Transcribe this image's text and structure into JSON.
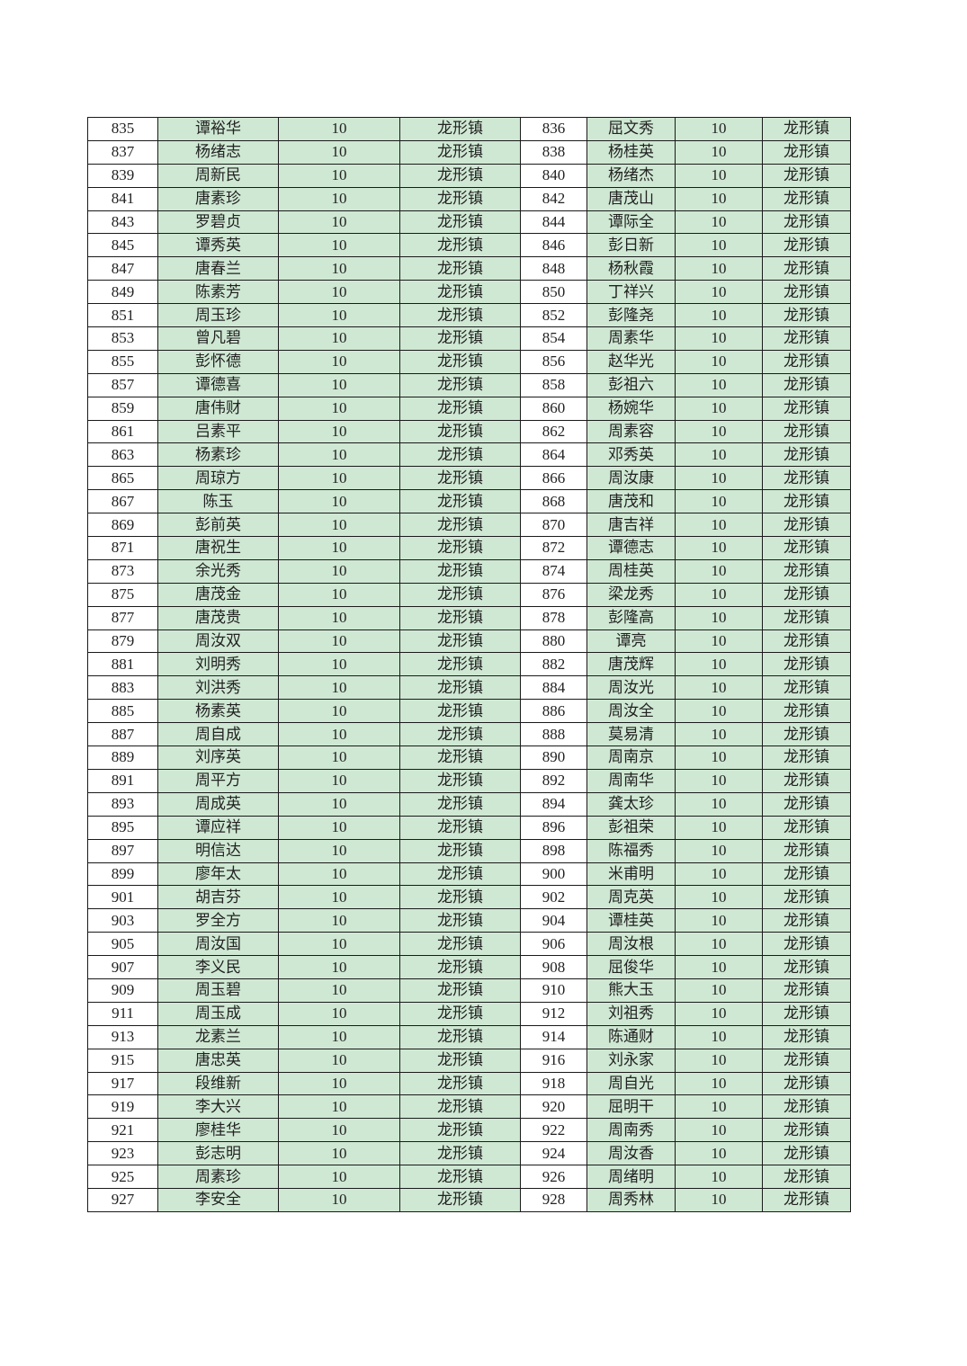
{
  "colors": {
    "fill": "#cfe8d3",
    "border": "#1a1a1a"
  },
  "rows": [
    [
      [
        "835",
        "谭裕华",
        "10",
        "龙形镇"
      ],
      [
        "836",
        "屈文秀",
        "10",
        "龙形镇"
      ]
    ],
    [
      [
        "837",
        "杨绪志",
        "10",
        "龙形镇"
      ],
      [
        "838",
        "杨桂英",
        "10",
        "龙形镇"
      ]
    ],
    [
      [
        "839",
        "周新民",
        "10",
        "龙形镇"
      ],
      [
        "840",
        "杨绪杰",
        "10",
        "龙形镇"
      ]
    ],
    [
      [
        "841",
        "唐素珍",
        "10",
        "龙形镇"
      ],
      [
        "842",
        "唐茂山",
        "10",
        "龙形镇"
      ]
    ],
    [
      [
        "843",
        "罗碧贞",
        "10",
        "龙形镇"
      ],
      [
        "844",
        "谭际全",
        "10",
        "龙形镇"
      ]
    ],
    [
      [
        "845",
        "谭秀英",
        "10",
        "龙形镇"
      ],
      [
        "846",
        "彭日新",
        "10",
        "龙形镇"
      ]
    ],
    [
      [
        "847",
        "唐春兰",
        "10",
        "龙形镇"
      ],
      [
        "848",
        "杨秋霞",
        "10",
        "龙形镇"
      ]
    ],
    [
      [
        "849",
        "陈素芳",
        "10",
        "龙形镇"
      ],
      [
        "850",
        "丁祥兴",
        "10",
        "龙形镇"
      ]
    ],
    [
      [
        "851",
        "周玉珍",
        "10",
        "龙形镇"
      ],
      [
        "852",
        "彭隆尧",
        "10",
        "龙形镇"
      ]
    ],
    [
      [
        "853",
        "曾凡碧",
        "10",
        "龙形镇"
      ],
      [
        "854",
        "周素华",
        "10",
        "龙形镇"
      ]
    ],
    [
      [
        "855",
        "彭怀德",
        "10",
        "龙形镇"
      ],
      [
        "856",
        "赵华光",
        "10",
        "龙形镇"
      ]
    ],
    [
      [
        "857",
        "谭德喜",
        "10",
        "龙形镇"
      ],
      [
        "858",
        "彭祖六",
        "10",
        "龙形镇"
      ]
    ],
    [
      [
        "859",
        "唐伟财",
        "10",
        "龙形镇"
      ],
      [
        "860",
        "杨婉华",
        "10",
        "龙形镇"
      ]
    ],
    [
      [
        "861",
        "吕素平",
        "10",
        "龙形镇"
      ],
      [
        "862",
        "周素容",
        "10",
        "龙形镇"
      ]
    ],
    [
      [
        "863",
        "杨素珍",
        "10",
        "龙形镇"
      ],
      [
        "864",
        "邓秀英",
        "10",
        "龙形镇"
      ]
    ],
    [
      [
        "865",
        "周琼方",
        "10",
        "龙形镇"
      ],
      [
        "866",
        "周汝康",
        "10",
        "龙形镇"
      ]
    ],
    [
      [
        "867",
        "陈玉",
        "10",
        "龙形镇"
      ],
      [
        "868",
        "唐茂和",
        "10",
        "龙形镇"
      ]
    ],
    [
      [
        "869",
        "彭前英",
        "10",
        "龙形镇"
      ],
      [
        "870",
        "唐吉祥",
        "10",
        "龙形镇"
      ]
    ],
    [
      [
        "871",
        "唐祝生",
        "10",
        "龙形镇"
      ],
      [
        "872",
        "谭德志",
        "10",
        "龙形镇"
      ]
    ],
    [
      [
        "873",
        "余光秀",
        "10",
        "龙形镇"
      ],
      [
        "874",
        "周桂英",
        "10",
        "龙形镇"
      ]
    ],
    [
      [
        "875",
        "唐茂金",
        "10",
        "龙形镇"
      ],
      [
        "876",
        "梁龙秀",
        "10",
        "龙形镇"
      ]
    ],
    [
      [
        "877",
        "唐茂贵",
        "10",
        "龙形镇"
      ],
      [
        "878",
        "彭隆高",
        "10",
        "龙形镇"
      ]
    ],
    [
      [
        "879",
        "周汝双",
        "10",
        "龙形镇"
      ],
      [
        "880",
        "谭亮",
        "10",
        "龙形镇"
      ]
    ],
    [
      [
        "881",
        "刘明秀",
        "10",
        "龙形镇"
      ],
      [
        "882",
        "唐茂辉",
        "10",
        "龙形镇"
      ]
    ],
    [
      [
        "883",
        "刘洪秀",
        "10",
        "龙形镇"
      ],
      [
        "884",
        "周汝光",
        "10",
        "龙形镇"
      ]
    ],
    [
      [
        "885",
        "杨素英",
        "10",
        "龙形镇"
      ],
      [
        "886",
        "周汝全",
        "10",
        "龙形镇"
      ]
    ],
    [
      [
        "887",
        "周自成",
        "10",
        "龙形镇"
      ],
      [
        "888",
        "莫易清",
        "10",
        "龙形镇"
      ]
    ],
    [
      [
        "889",
        "刘序英",
        "10",
        "龙形镇"
      ],
      [
        "890",
        "周南京",
        "10",
        "龙形镇"
      ]
    ],
    [
      [
        "891",
        "周平方",
        "10",
        "龙形镇"
      ],
      [
        "892",
        "周南华",
        "10",
        "龙形镇"
      ]
    ],
    [
      [
        "893",
        "周成英",
        "10",
        "龙形镇"
      ],
      [
        "894",
        "龚太珍",
        "10",
        "龙形镇"
      ]
    ],
    [
      [
        "895",
        "谭应祥",
        "10",
        "龙形镇"
      ],
      [
        "896",
        "彭祖荣",
        "10",
        "龙形镇"
      ]
    ],
    [
      [
        "897",
        "明信达",
        "10",
        "龙形镇"
      ],
      [
        "898",
        "陈福秀",
        "10",
        "龙形镇"
      ]
    ],
    [
      [
        "899",
        "廖年太",
        "10",
        "龙形镇"
      ],
      [
        "900",
        "米甫明",
        "10",
        "龙形镇"
      ]
    ],
    [
      [
        "901",
        "胡吉芬",
        "10",
        "龙形镇"
      ],
      [
        "902",
        "周克英",
        "10",
        "龙形镇"
      ]
    ],
    [
      [
        "903",
        "罗全方",
        "10",
        "龙形镇"
      ],
      [
        "904",
        "谭桂英",
        "10",
        "龙形镇"
      ]
    ],
    [
      [
        "905",
        "周汝国",
        "10",
        "龙形镇"
      ],
      [
        "906",
        "周汝根",
        "10",
        "龙形镇"
      ]
    ],
    [
      [
        "907",
        "李义民",
        "10",
        "龙形镇"
      ],
      [
        "908",
        "屈俊华",
        "10",
        "龙形镇"
      ]
    ],
    [
      [
        "909",
        "周玉碧",
        "10",
        "龙形镇"
      ],
      [
        "910",
        "熊大玉",
        "10",
        "龙形镇"
      ]
    ],
    [
      [
        "911",
        "周玉成",
        "10",
        "龙形镇"
      ],
      [
        "912",
        "刘祖秀",
        "10",
        "龙形镇"
      ]
    ],
    [
      [
        "913",
        "龙素兰",
        "10",
        "龙形镇"
      ],
      [
        "914",
        "陈通财",
        "10",
        "龙形镇"
      ]
    ],
    [
      [
        "915",
        "唐忠英",
        "10",
        "龙形镇"
      ],
      [
        "916",
        "刘永家",
        "10",
        "龙形镇"
      ]
    ],
    [
      [
        "917",
        "段维新",
        "10",
        "龙形镇"
      ],
      [
        "918",
        "周自光",
        "10",
        "龙形镇"
      ]
    ],
    [
      [
        "919",
        "李大兴",
        "10",
        "龙形镇"
      ],
      [
        "920",
        "屈明干",
        "10",
        "龙形镇"
      ]
    ],
    [
      [
        "921",
        "廖桂华",
        "10",
        "龙形镇"
      ],
      [
        "922",
        "周南秀",
        "10",
        "龙形镇"
      ]
    ],
    [
      [
        "923",
        "彭志明",
        "10",
        "龙形镇"
      ],
      [
        "924",
        "周汝香",
        "10",
        "龙形镇"
      ]
    ],
    [
      [
        "925",
        "周素珍",
        "10",
        "龙形镇"
      ],
      [
        "926",
        "周绪明",
        "10",
        "龙形镇"
      ]
    ],
    [
      [
        "927",
        "李安全",
        "10",
        "龙形镇"
      ],
      [
        "928",
        "周秀林",
        "10",
        "龙形镇"
      ]
    ]
  ]
}
